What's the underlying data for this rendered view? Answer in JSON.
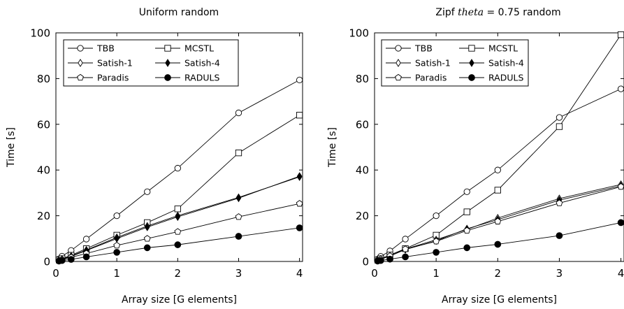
{
  "chart_data": [
    {
      "type": "line",
      "title": "Uniform random",
      "xlabel": "Array size [G elements]",
      "ylabel": "Time [s]",
      "xlim": [
        0,
        4.05
      ],
      "ylim": [
        0,
        100
      ],
      "xticks": [
        "0",
        "1",
        "2",
        "3",
        "4"
      ],
      "yticks": [
        "0",
        "20",
        "40",
        "60",
        "80",
        "100"
      ],
      "legend_position": "top-left",
      "series": [
        {
          "name": "TBB",
          "marker": "circle-open",
          "x": [
            0.05,
            0.1,
            0.25,
            0.5,
            1,
            1.5,
            2,
            3,
            4
          ],
          "y": [
            1.1,
            2.3,
            4.8,
            9.8,
            20,
            30.5,
            40.8,
            65,
            79.4
          ]
        },
        {
          "name": "MCSTL",
          "marker": "square-open",
          "x": [
            0.05,
            0.1,
            0.25,
            0.5,
            1,
            1.5,
            2,
            3,
            4
          ],
          "y": [
            0.6,
            1.2,
            2.7,
            5.6,
            11.5,
            17,
            23,
            47.5,
            64
          ]
        },
        {
          "name": "Satish-1",
          "marker": "diamond-open",
          "x": [
            0.05,
            0.1,
            0.25,
            0.5,
            1,
            1.5,
            2,
            3,
            4
          ],
          "y": [
            0.5,
            1.0,
            2.4,
            5.0,
            10.5,
            15.5,
            20,
            28,
            37
          ]
        },
        {
          "name": "Satish-4",
          "marker": "diamond-filled",
          "x": [
            0.05,
            0.1,
            0.25,
            0.5,
            1,
            1.5,
            2,
            3,
            4
          ],
          "y": [
            0.5,
            1.0,
            2.2,
            4.8,
            10,
            15,
            19.5,
            27.7,
            37.3
          ]
        },
        {
          "name": "Paradis",
          "marker": "pentagon-open",
          "x": [
            0.05,
            0.1,
            0.25,
            0.5,
            1,
            1.5,
            2,
            3,
            4
          ],
          "y": [
            0.4,
            0.8,
            1.8,
            3.5,
            7,
            10,
            13,
            19.5,
            25.3
          ]
        },
        {
          "name": "RADULS",
          "marker": "circle-filled",
          "x": [
            0.05,
            0.1,
            0.25,
            0.5,
            1,
            1.5,
            2,
            3,
            4
          ],
          "y": [
            0.2,
            0.4,
            0.9,
            2,
            4,
            6,
            7.3,
            11,
            14.7
          ]
        }
      ]
    },
    {
      "type": "line",
      "title_prefix": "Zipf ",
      "title_math": "theta",
      "title_suffix": " = 0.75 random",
      "xlabel": "Array size [G elements]",
      "ylabel": "Time [s]",
      "xlim": [
        0,
        4.05
      ],
      "ylim": [
        0,
        100
      ],
      "xticks": [
        "0",
        "1",
        "2",
        "3",
        "4"
      ],
      "yticks": [
        "0",
        "20",
        "40",
        "60",
        "80",
        "100"
      ],
      "legend_position": "top-left",
      "series": [
        {
          "name": "TBB",
          "marker": "circle-open",
          "x": [
            0.05,
            0.1,
            0.25,
            0.5,
            1,
            1.5,
            2,
            3,
            4
          ],
          "y": [
            1,
            2.2,
            4.6,
            9.8,
            20,
            30.5,
            40,
            63,
            75.5
          ]
        },
        {
          "name": "MCSTL",
          "marker": "square-open",
          "x": [
            0.05,
            0.1,
            0.25,
            0.5,
            1,
            1.5,
            2,
            3,
            4
          ],
          "y": [
            0.6,
            1.2,
            2.8,
            5.6,
            11.5,
            21.7,
            31.2,
            59,
            99.2
          ]
        },
        {
          "name": "Satish-1",
          "marker": "diamond-open",
          "x": [
            0.05,
            0.1,
            0.25,
            0.5,
            1,
            1.5,
            2,
            3,
            4
          ],
          "y": [
            0.5,
            1.0,
            2.4,
            5.4,
            9.5,
            14,
            19,
            27.5,
            33.7
          ]
        },
        {
          "name": "Satish-4",
          "marker": "diamond-filled",
          "x": [
            0.05,
            0.1,
            0.25,
            0.5,
            1,
            1.5,
            2,
            3,
            4
          ],
          "y": [
            0.5,
            1.0,
            2.4,
            5.2,
            9,
            14.3,
            18.3,
            26.8,
            33.1
          ]
        },
        {
          "name": "Paradis",
          "marker": "pentagon-open",
          "x": [
            0.05,
            0.1,
            0.25,
            0.5,
            1,
            1.5,
            2,
            3,
            4
          ],
          "y": [
            0.5,
            1.0,
            2.4,
            5.4,
            8.8,
            13.5,
            17.5,
            25.5,
            32.7
          ]
        },
        {
          "name": "RADULS",
          "marker": "circle-filled",
          "x": [
            0.05,
            0.1,
            0.25,
            0.5,
            1,
            1.5,
            2,
            3,
            4
          ],
          "y": [
            0.2,
            0.4,
            1.0,
            2,
            4,
            6,
            7.5,
            11.3,
            17
          ]
        }
      ]
    }
  ]
}
